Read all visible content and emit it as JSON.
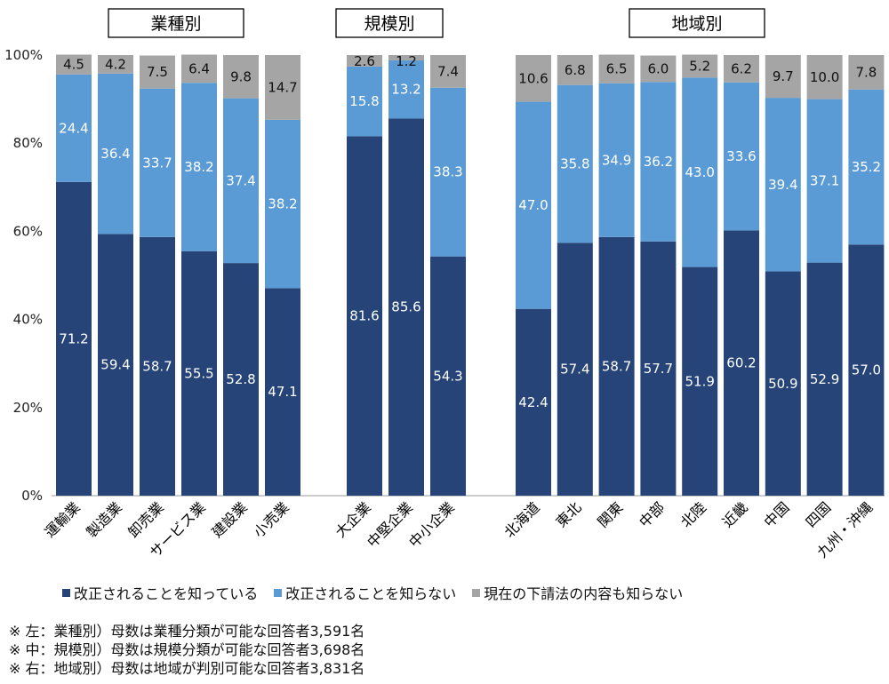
{
  "chart_data": {
    "type": "bar",
    "stacked": "100%",
    "yticks": [
      "100%",
      "80%",
      "60%",
      "40%",
      "20%",
      "0%"
    ],
    "ylim": [
      0,
      100
    ],
    "grid": false,
    "legend_position": "bottom",
    "colors": {
      "known": "#264478",
      "unknown": "#5b9bd5",
      "no_subcontract": "#a5a5a5"
    },
    "legend": [
      "改正されることを知っている",
      "改正されることを知らない",
      "現在の下請法の内容も知らない"
    ],
    "groups": [
      {
        "title": "業種別",
        "categories": [
          "運輸業",
          "製造業",
          "卸売業",
          "サービス業",
          "建設業",
          "小売業"
        ],
        "series": [
          {
            "name": "改正されることを知っている",
            "values": [
              71.2,
              59.4,
              58.7,
              55.5,
              52.8,
              47.1
            ]
          },
          {
            "name": "改正されることを知らない",
            "values": [
              24.4,
              36.4,
              33.7,
              38.2,
              37.4,
              38.2
            ]
          },
          {
            "name": "現在の下請法の内容も知らない",
            "values": [
              4.5,
              4.2,
              7.5,
              6.4,
              9.8,
              14.7
            ]
          }
        ]
      },
      {
        "title": "規模別",
        "categories": [
          "大企業",
          "中堅企業",
          "中小企業"
        ],
        "series": [
          {
            "name": "改正されることを知っている",
            "values": [
              81.6,
              85.6,
              54.3
            ]
          },
          {
            "name": "改正されることを知らない",
            "values": [
              15.8,
              13.2,
              38.3
            ]
          },
          {
            "name": "現在の下請法の内容も知らない",
            "values": [
              2.6,
              1.2,
              7.4
            ]
          }
        ]
      },
      {
        "title": "地域別",
        "categories": [
          "北海道",
          "東北",
          "関東",
          "中部",
          "北陸",
          "近畿",
          "中国",
          "四国",
          "九州・沖縄"
        ],
        "series": [
          {
            "name": "改正されることを知っている",
            "values": [
              42.4,
              57.4,
              58.7,
              57.7,
              51.9,
              60.2,
              50.9,
              52.9,
              57.0
            ]
          },
          {
            "name": "改正されることを知らない",
            "values": [
              47.0,
              35.8,
              34.9,
              36.2,
              43.0,
              33.6,
              39.4,
              37.1,
              35.2
            ]
          },
          {
            "name": "現在の下請法の内容も知らない",
            "values": [
              10.6,
              6.8,
              6.5,
              6.0,
              5.2,
              6.2,
              9.7,
              10.0,
              7.8
            ]
          }
        ]
      }
    ]
  },
  "notes": [
    "※ 左：業種別）母数は業種分類が可能な回答者3,591名",
    "※ 中：規模別）母数は規模分類が可能な回答者3,698名",
    "※ 右：地域別）母数は地域が判別可能な回答者3,831名"
  ]
}
